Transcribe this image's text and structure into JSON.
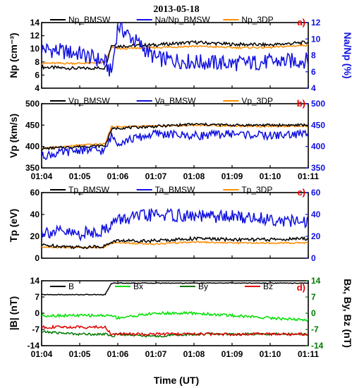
{
  "title": "2013-05-18",
  "xlabel": "Time (UT)",
  "x_tick_labels": [
    "01:04",
    "01:05",
    "01:06",
    "01:07",
    "01:08",
    "01:09",
    "01:10",
    "01:11"
  ],
  "colors": {
    "black": "#000000",
    "blue": "#1010e0",
    "orange": "#ff8c00",
    "green_light": "#00e000",
    "green_dark": "#007a00",
    "red": "#e00000",
    "panel_label": "#e00000"
  },
  "chart_data": [
    {
      "type": "line",
      "panel_label": "a)",
      "ylabel": "Np (cm⁻³)",
      "ylim": [
        4,
        14
      ],
      "y_ticks": [
        "4",
        "6",
        "8",
        "10",
        "12",
        "14"
      ],
      "ylabel_right": "Na/Np (%)",
      "ylim_right": [
        4,
        12
      ],
      "y_ticks_right": [
        "4",
        "6",
        "8",
        "10",
        "12"
      ],
      "x": [
        "01:04",
        "01:05",
        "01:05:40",
        "01:05:50",
        "01:06",
        "01:07",
        "01:08",
        "01:09",
        "01:10",
        "01:11"
      ],
      "series": [
        {
          "name": "Np_BMSW",
          "color": "#000000",
          "axis": "left",
          "values": [
            7.2,
            7.0,
            7.1,
            10.6,
            10.4,
            10.6,
            11.0,
            10.7,
            10.6,
            11.0
          ]
        },
        {
          "name": "Na/Np_BMSW",
          "color": "#1010e0",
          "axis": "right",
          "values": [
            8.8,
            8.2,
            7.2,
            5.8,
            11.6,
            7.6,
            7.2,
            7.0,
            7.2,
            7.4
          ]
        },
        {
          "name": "Np_3DP",
          "color": "#ff8c00",
          "axis": "left",
          "values": [
            7.8,
            7.8,
            7.9,
            10.2,
            10.0,
            10.2,
            10.4,
            10.2,
            10.2,
            10.6
          ]
        }
      ]
    },
    {
      "type": "line",
      "panel_label": "b)",
      "ylabel": "Vp (km/s)",
      "ylim": [
        350,
        500
      ],
      "y_ticks": [
        "350",
        "400",
        "450",
        "500"
      ],
      "ylim_right": [
        350,
        500
      ],
      "y_ticks_right": [
        "350",
        "400",
        "450",
        "500"
      ],
      "x": [
        "01:04",
        "01:05",
        "01:05:40",
        "01:05:50",
        "01:06",
        "01:07",
        "01:08",
        "01:09",
        "01:10",
        "01:11"
      ],
      "series": [
        {
          "name": "Vp_BMSW",
          "color": "#000000",
          "axis": "left",
          "values": [
            395,
            400,
            402,
            440,
            443,
            447,
            452,
            450,
            450,
            450
          ]
        },
        {
          "name": "Va_BMSW",
          "color": "#1010e0",
          "axis": "right",
          "values": [
            378,
            392,
            390,
            425,
            410,
            430,
            425,
            430,
            425,
            430
          ]
        },
        {
          "name": "Vp_3DP",
          "color": "#ff8c00",
          "axis": "left",
          "values": [
            395,
            403,
            406,
            446,
            446,
            448,
            450,
            448,
            447,
            447
          ]
        }
      ]
    },
    {
      "type": "line",
      "panel_label": "c)",
      "ylabel": "Tp (eV)",
      "ylim": [
        0,
        60
      ],
      "y_ticks": [
        "0",
        "20",
        "40",
        "60"
      ],
      "ylim_right": [
        0,
        60
      ],
      "y_ticks_right": [
        "0",
        "20",
        "40",
        "60"
      ],
      "x": [
        "01:04",
        "01:05",
        "01:05:40",
        "01:05:50",
        "01:06",
        "01:07",
        "01:08",
        "01:09",
        "01:10",
        "01:11"
      ],
      "series": [
        {
          "name": "Tp_BMSW",
          "color": "#000000",
          "axis": "left",
          "values": [
            12,
            10,
            11,
            15,
            16,
            16,
            18,
            17,
            17,
            18
          ]
        },
        {
          "name": "Ta_BMSW",
          "color": "#1010e0",
          "axis": "right",
          "values": [
            25,
            22,
            26,
            32,
            35,
            40,
            38,
            38,
            36,
            32
          ]
        },
        {
          "name": "Tp_3DP",
          "color": "#ff8c00",
          "axis": "left",
          "values": [
            10,
            10,
            10,
            14,
            14,
            13,
            15,
            14,
            14,
            14
          ]
        }
      ]
    },
    {
      "type": "line",
      "panel_label": "d)",
      "ylabel": "|B| (nT)",
      "ylim": [
        -14,
        14
      ],
      "y_ticks": [
        "-14",
        "-7",
        "0",
        "7",
        "14"
      ],
      "ylabel_right": "Bx, By, Bz (nT)",
      "ylim_right": [
        -14,
        14
      ],
      "y_ticks_right": [
        "-14",
        "-7",
        "0",
        "7",
        "14"
      ],
      "x": [
        "01:04",
        "01:05",
        "01:05:40",
        "01:05:50",
        "01:06",
        "01:07",
        "01:08",
        "01:09",
        "01:10",
        "01:11"
      ],
      "series": [
        {
          "name": "B",
          "color": "#000000",
          "axis": "left",
          "values": [
            8,
            8,
            8,
            13,
            13,
            13,
            13,
            13,
            13,
            13
          ]
        },
        {
          "name": "Bx",
          "color": "#00e000",
          "axis": "right",
          "values": [
            -1,
            -1,
            -1,
            -1,
            -2,
            0,
            0,
            -1,
            -2,
            -3
          ]
        },
        {
          "name": "By",
          "color": "#007a00",
          "axis": "right",
          "values": [
            -8,
            -9,
            -9,
            -10,
            -9,
            -10,
            -9,
            -9,
            -9,
            -9
          ]
        },
        {
          "name": "Bz",
          "color": "#e00000",
          "axis": "right",
          "values": [
            -6,
            -6,
            -6,
            -9,
            -9,
            -9,
            -9,
            -9,
            -9,
            -9
          ]
        }
      ]
    }
  ]
}
